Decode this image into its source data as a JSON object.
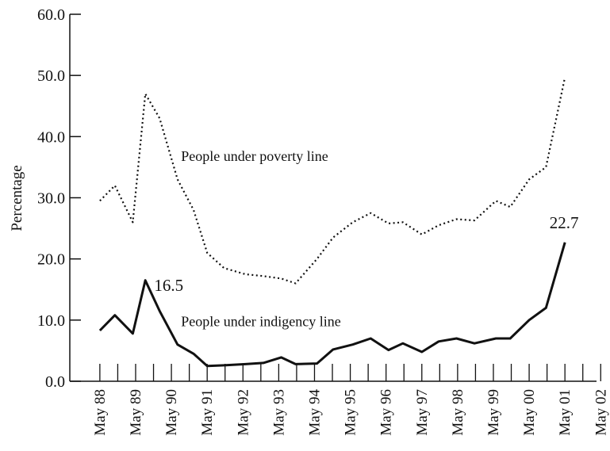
{
  "chart_data": {
    "type": "line",
    "ylabel": "Percentage",
    "ylim": [
      0,
      60
    ],
    "y_ticks": [
      "0.0",
      "10.0",
      "20.0",
      "30.0",
      "40.0",
      "50.0",
      "60.0"
    ],
    "x_ticks": [
      "May 88",
      "May 89",
      "May 90",
      "May 91",
      "May 92",
      "May 93",
      "May 94",
      "May 95",
      "May 96",
      "May 97",
      "May 98",
      "May 99",
      "May 00",
      "May 01",
      "May 02"
    ],
    "grid": false,
    "series": [
      {
        "name": "People under poverty line",
        "style": "dotted",
        "color": "#111111",
        "points": [
          [
            1988.33,
            29.5
          ],
          [
            1988.75,
            32.0
          ],
          [
            1989.25,
            26.0
          ],
          [
            1989.6,
            47.0
          ],
          [
            1990.0,
            43.0
          ],
          [
            1990.5,
            33.0
          ],
          [
            1990.95,
            28.0
          ],
          [
            1991.33,
            21.0
          ],
          [
            1991.8,
            18.5
          ],
          [
            1992.4,
            17.5
          ],
          [
            1992.9,
            17.2
          ],
          [
            1993.4,
            16.8
          ],
          [
            1993.8,
            16.0
          ],
          [
            1994.4,
            20.0
          ],
          [
            1994.85,
            23.5
          ],
          [
            1995.4,
            26.0
          ],
          [
            1995.9,
            27.5
          ],
          [
            1996.4,
            25.8
          ],
          [
            1996.8,
            26.0
          ],
          [
            1997.33,
            24.0
          ],
          [
            1997.8,
            25.5
          ],
          [
            1998.3,
            26.5
          ],
          [
            1998.8,
            26.3
          ],
          [
            1999.4,
            29.5
          ],
          [
            1999.8,
            28.5
          ],
          [
            2000.33,
            33.0
          ],
          [
            2000.8,
            35.0
          ],
          [
            2001.33,
            49.7
          ]
        ]
      },
      {
        "name": "People under indigency line",
        "style": "solid",
        "color": "#111111",
        "points": [
          [
            1988.33,
            8.3
          ],
          [
            1988.75,
            10.8
          ],
          [
            1989.25,
            7.8
          ],
          [
            1989.6,
            16.5
          ],
          [
            1990.0,
            11.5
          ],
          [
            1990.5,
            6.0
          ],
          [
            1990.95,
            4.5
          ],
          [
            1991.33,
            2.5
          ],
          [
            1991.8,
            2.6
          ],
          [
            1992.4,
            2.8
          ],
          [
            1992.9,
            3.0
          ],
          [
            1993.4,
            3.9
          ],
          [
            1993.8,
            2.8
          ],
          [
            1994.4,
            2.9
          ],
          [
            1994.85,
            5.2
          ],
          [
            1995.4,
            6.0
          ],
          [
            1995.9,
            7.0
          ],
          [
            1996.4,
            5.1
          ],
          [
            1996.8,
            6.2
          ],
          [
            1997.33,
            4.8
          ],
          [
            1997.8,
            6.5
          ],
          [
            1998.3,
            7.0
          ],
          [
            1998.8,
            6.2
          ],
          [
            1999.4,
            7.0
          ],
          [
            1999.8,
            7.0
          ],
          [
            2000.33,
            10.0
          ],
          [
            2000.8,
            12.0
          ],
          [
            2001.33,
            22.7
          ]
        ]
      }
    ],
    "annotations": [
      {
        "text": "People under poverty line",
        "x": 1990.6,
        "y": 36.0,
        "size": "normal"
      },
      {
        "text": "People under indigency line",
        "x": 1990.6,
        "y": 9.0,
        "size": "normal"
      },
      {
        "text": "16.5",
        "x": 1989.85,
        "y": 14.8,
        "size": "large"
      },
      {
        "text": "22.7",
        "x": 2000.9,
        "y": 25.0,
        "size": "large"
      }
    ]
  }
}
